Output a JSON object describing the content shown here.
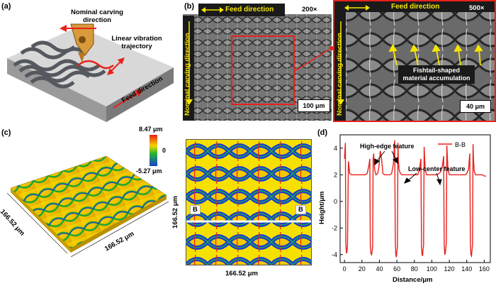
{
  "panel_a": {
    "label": "(a)",
    "nominal_carving": "Nominal carving direction",
    "linear_vibration": "Linear vibration trajectory",
    "feed_direction": "Feed direction"
  },
  "panel_b": {
    "label": "(b)",
    "feed_direction": "Feed direction",
    "magnification_left": "200×",
    "magnification_right": "500×",
    "nominal_carving": "Nominal carving direction",
    "scale_left": "100 μm",
    "scale_right": "40 μm",
    "annotation": "Fishtail-shaped material accumulation",
    "colors": {
      "highlight": "#e8211b",
      "arrow": "#f7e600"
    }
  },
  "panel_c": {
    "label": "(c)",
    "colorbar_max": "8.47 μm",
    "colorbar_mid": "0",
    "colorbar_min": "-5.27 μm",
    "side_1": "166.52 μm",
    "side_2": "166.52 μm",
    "map_y_label": "166.52 μm",
    "map_x_label": "166.52 μm",
    "section_left": "B",
    "section_right": "B"
  },
  "panel_d": {
    "label": "(d)",
    "annotation_high": "High-edge feature",
    "annotation_low": "Low-center feature",
    "legend": "B-B",
    "xlabel": "Distance/μm",
    "ylabel": "Height/μm",
    "x_ticks": [
      "0",
      "20",
      "40",
      "60",
      "80",
      "100",
      "120",
      "140",
      "160"
    ],
    "y_ticks": [
      "4",
      "2",
      "0",
      "-2",
      "-4"
    ]
  },
  "chart_data": {
    "type": "line",
    "title": "",
    "xlabel": "Distance/μm",
    "ylabel": "Height/μm",
    "xlim": [
      -5,
      167
    ],
    "ylim": [
      -4.6,
      5
    ],
    "legend_position": "top-right",
    "series": [
      {
        "name": "B-B",
        "color": "#e8211b",
        "x": [
          0,
          1,
          1.6,
          2.3,
          2.8,
          3.4,
          4.5,
          6,
          8,
          10,
          12,
          14,
          16,
          18,
          20,
          22,
          24,
          26,
          28,
          29,
          29.6,
          30.3,
          31,
          31.5,
          32.2,
          32.8,
          33.4,
          34.5,
          36,
          38,
          39.5,
          41,
          42.5,
          44,
          46,
          48,
          50,
          52,
          54,
          56,
          57.5,
          58.2,
          58.8,
          59.4,
          60,
          60.6,
          61.2,
          61.8,
          62.5,
          64,
          66,
          68,
          70,
          72,
          74,
          76,
          78,
          80,
          82,
          84,
          86,
          87.5,
          88.2,
          88.8,
          89.4,
          90,
          90.6,
          91.2,
          91.8,
          92.5,
          94,
          96,
          98,
          100,
          102,
          104,
          106,
          108,
          110,
          112,
          113.5,
          114.2,
          114.8,
          115.4,
          116,
          116.6,
          117.2,
          117.8,
          118.5,
          120,
          122,
          124,
          126,
          128,
          130,
          132,
          134,
          136,
          138,
          140,
          142,
          143.5,
          144.2,
          144.8,
          145.4,
          146,
          146.6,
          147.2,
          147.8,
          148.5,
          150,
          152,
          154,
          156,
          158,
          160,
          162
        ],
        "y": [
          3.2,
          4.4,
          -3.2,
          -3.9,
          -3.8,
          -3.3,
          3.0,
          2.1,
          2.0,
          2.0,
          2.0,
          2.0,
          2.0,
          2.0,
          2.0,
          2.0,
          2.0,
          2.1,
          2.7,
          3.2,
          -3.3,
          -3.9,
          -4.0,
          -3.8,
          -3.4,
          3.2,
          3.6,
          2.4,
          2.0,
          2.1,
          2.6,
          3.8,
          3.2,
          2.1,
          2.0,
          2.0,
          2.0,
          2.0,
          2.1,
          2.8,
          4.6,
          -3.0,
          -4.0,
          -4.2,
          -3.7,
          -3.5,
          4.4,
          3.0,
          2.4,
          2.1,
          2.0,
          2.0,
          2.0,
          2.0,
          2.0,
          2.0,
          2.0,
          2.0,
          2.0,
          2.0,
          2.5,
          3.2,
          -3.4,
          -4.0,
          -4.1,
          -3.6,
          -3.3,
          4.1,
          3.2,
          2.4,
          2.0,
          2.0,
          2.0,
          2.0,
          2.0,
          2.0,
          2.0,
          2.1,
          2.2,
          2.6,
          3.4,
          -3.2,
          -4.0,
          -3.9,
          -3.5,
          -3.1,
          4.2,
          3.3,
          2.4,
          2.0,
          2.0,
          2.0,
          2.0,
          2.0,
          2.0,
          2.0,
          2.0,
          2.0,
          2.0,
          2.1,
          2.4,
          3.6,
          -3.3,
          -4.0,
          -4.1,
          -3.7,
          -3.2,
          4.3,
          3.1,
          2.3,
          2.0,
          2.0,
          2.0,
          2.0,
          2.0,
          1.9,
          1.9
        ]
      }
    ]
  }
}
